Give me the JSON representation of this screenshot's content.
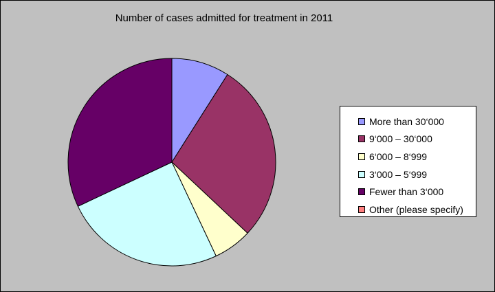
{
  "chart_data": {
    "type": "pie",
    "title": "Number of cases admitted for treatment in 2011",
    "legend_position": "right",
    "slices": [
      {
        "label": "More than 30‘000",
        "value": 9,
        "color": "#9999ff"
      },
      {
        "label": "9‘000 – 30‘000",
        "value": 28,
        "color": "#993366"
      },
      {
        "label": "6‘000 – 8‘999",
        "value": 6,
        "color": "#ffffcc"
      },
      {
        "label": "3‘000 – 5‘999",
        "value": 25,
        "color": "#ccffff"
      },
      {
        "label": "Fewer than 3‘000",
        "value": 32,
        "color": "#660066"
      },
      {
        "label": "Other (please specify)",
        "value": 0,
        "color": "#ff8080"
      }
    ]
  }
}
